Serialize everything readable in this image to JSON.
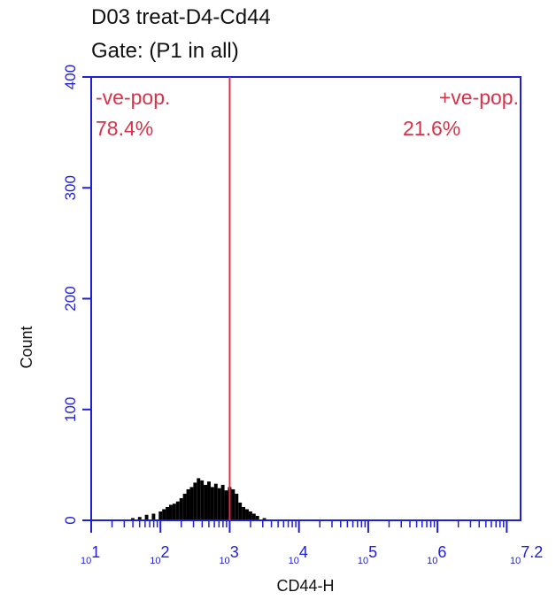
{
  "chart_data": {
    "type": "histogram",
    "title": "D03 treat-D4-Cd44",
    "subtitle": "Gate: (P1 in all)",
    "xlabel": "CD44-H",
    "ylabel": "Count",
    "x_scale": "log10",
    "xlim": [
      10,
      15848931.9
    ],
    "ylim": [
      0,
      400
    ],
    "y_ticks": [
      0,
      100,
      200,
      300,
      400
    ],
    "x_ticks": [
      {
        "base": "10",
        "exp": "1"
      },
      {
        "base": "10",
        "exp": "2"
      },
      {
        "base": "10",
        "exp": "3"
      },
      {
        "base": "10",
        "exp": "4"
      },
      {
        "base": "10",
        "exp": "5"
      },
      {
        "base": "10",
        "exp": "6"
      },
      {
        "base": "10",
        "exp": "7.2"
      }
    ],
    "gate_x": 1000,
    "regions": [
      {
        "label": "-ve-pop.",
        "percent": "78.4%"
      },
      {
        "label": "+ve-pop.",
        "percent": "21.6%"
      }
    ],
    "bins_log10_x": [
      1.6,
      1.7,
      1.8,
      1.9,
      2.0,
      2.05,
      2.1,
      2.15,
      2.2,
      2.25,
      2.3,
      2.35,
      2.4,
      2.45,
      2.5,
      2.55,
      2.6,
      2.65,
      2.7,
      2.75,
      2.8,
      2.85,
      2.9,
      2.95,
      3.0,
      3.05,
      3.1,
      3.15,
      3.2,
      3.25,
      3.3,
      3.35,
      3.4,
      3.5
    ],
    "counts": [
      2,
      3,
      5,
      6,
      8,
      10,
      12,
      14,
      15,
      17,
      20,
      24,
      28,
      30,
      34,
      38,
      36,
      32,
      35,
      30,
      33,
      29,
      32,
      27,
      30,
      28,
      24,
      16,
      12,
      10,
      8,
      6,
      4,
      2
    ],
    "colors": {
      "axes": "#1f1fd6",
      "gate": "#d8324a",
      "bars": "#000000",
      "text": "#111111"
    }
  }
}
